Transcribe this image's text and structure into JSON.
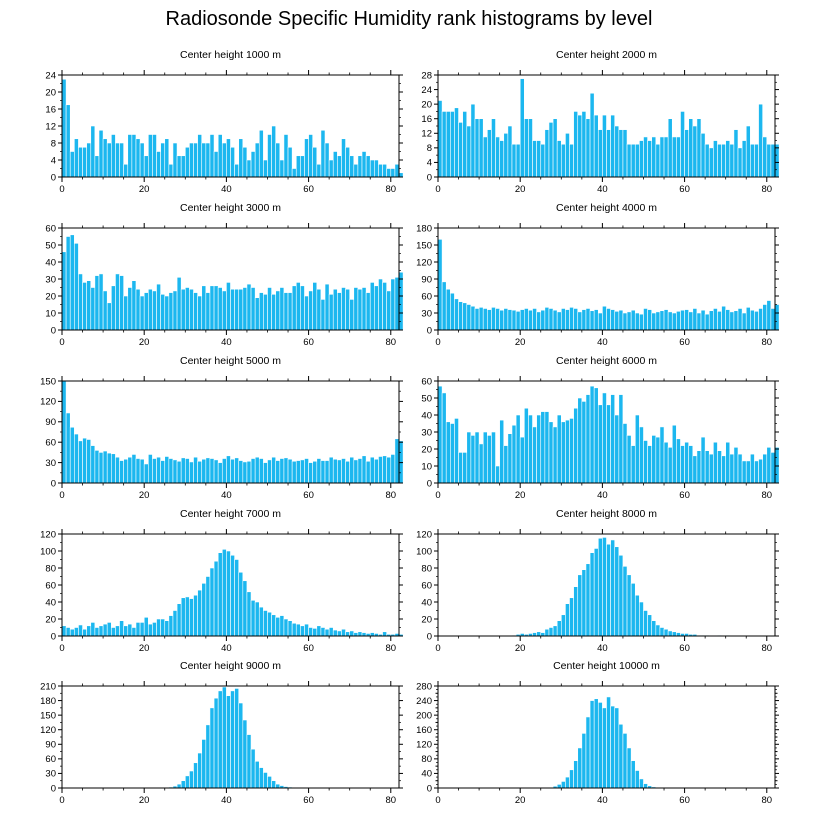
{
  "figure": {
    "title": "Radiosonde Specific Humidity rank histograms by level",
    "bar_color": "#1cb7ef",
    "bar_edge_color": "#ffffff",
    "axis_color": "#000000"
  },
  "chart_data": [
    {
      "type": "bar",
      "title": "Center height 1000 m",
      "xlim": [
        0,
        82
      ],
      "ylim": [
        0,
        24
      ],
      "xticks": [
        0,
        20,
        40,
        60,
        80
      ],
      "yticks": [
        0,
        4,
        8,
        12,
        16,
        20,
        24
      ],
      "values": [
        23,
        17,
        6,
        9,
        7,
        7,
        8,
        12,
        5,
        11,
        9,
        8,
        10,
        8,
        8,
        3,
        10,
        10,
        9,
        8,
        5,
        10,
        10,
        6,
        8,
        9,
        3,
        8,
        5,
        5,
        7,
        8,
        8,
        10,
        8,
        8,
        10,
        6,
        10,
        8,
        9,
        7,
        3,
        9,
        7,
        4,
        6,
        8,
        11,
        4,
        10,
        12,
        8,
        4,
        10,
        7,
        2,
        5,
        5,
        9,
        10,
        7,
        3,
        11,
        8,
        4,
        6,
        5,
        9,
        7,
        5,
        3,
        5,
        6,
        5,
        4,
        4,
        3,
        3,
        2,
        2,
        3,
        1
      ]
    },
    {
      "type": "bar",
      "title": "Center height 2000 m",
      "xlim": [
        0,
        82
      ],
      "ylim": [
        0,
        28
      ],
      "xticks": [
        0,
        20,
        40,
        60,
        80
      ],
      "yticks": [
        0,
        4,
        8,
        12,
        16,
        20,
        24,
        28
      ],
      "values": [
        21,
        18,
        18,
        18,
        19,
        15,
        18,
        14,
        20,
        16,
        16,
        11,
        13,
        16,
        11,
        10,
        12,
        14,
        9,
        9,
        27,
        16,
        16,
        10,
        10,
        9,
        13,
        15,
        16,
        10,
        9,
        12,
        9,
        18,
        17,
        18,
        16,
        23,
        17,
        13,
        17,
        13,
        17,
        14,
        13,
        13,
        9,
        9,
        9,
        10,
        11,
        10,
        11,
        9,
        11,
        11,
        16,
        11,
        11,
        18,
        13,
        16,
        14,
        16,
        12,
        9,
        8,
        10,
        9,
        9,
        10,
        9,
        13,
        8,
        10,
        14,
        9,
        9,
        20,
        11,
        9,
        9,
        9
      ]
    },
    {
      "type": "bar",
      "title": "Center height 3000 m",
      "xlim": [
        0,
        82
      ],
      "ylim": [
        0,
        60
      ],
      "xticks": [
        0,
        20,
        40,
        60,
        80
      ],
      "yticks": [
        0,
        10,
        20,
        30,
        40,
        50,
        60
      ],
      "values": [
        46,
        55,
        56,
        51,
        33,
        28,
        29,
        25,
        32,
        33,
        23,
        16,
        26,
        33,
        32,
        20,
        25,
        29,
        24,
        20,
        22,
        24,
        23,
        27,
        21,
        20,
        22,
        23,
        31,
        24,
        25,
        24,
        22,
        20,
        26,
        22,
        26,
        26,
        25,
        23,
        28,
        24,
        24,
        24,
        25,
        27,
        25,
        19,
        22,
        21,
        25,
        21,
        23,
        25,
        22,
        22,
        26,
        28,
        26,
        20,
        23,
        28,
        24,
        18,
        27,
        21,
        24,
        22,
        25,
        24,
        18,
        25,
        24,
        25,
        22,
        28,
        26,
        30,
        28,
        23,
        30,
        31,
        34
      ]
    },
    {
      "type": "bar",
      "title": "Center height 4000 m",
      "xlim": [
        0,
        82
      ],
      "ylim": [
        0,
        180
      ],
      "xticks": [
        0,
        20,
        40,
        60,
        80
      ],
      "yticks": [
        0,
        30,
        60,
        90,
        120,
        150,
        180
      ],
      "values": [
        160,
        85,
        72,
        65,
        55,
        50,
        48,
        45,
        42,
        38,
        40,
        38,
        36,
        40,
        38,
        35,
        38,
        36,
        35,
        33,
        36,
        38,
        35,
        38,
        32,
        35,
        40,
        38,
        35,
        32,
        38,
        36,
        40,
        38,
        32,
        36,
        38,
        34,
        36,
        30,
        42,
        38,
        36,
        33,
        35,
        30,
        32,
        35,
        30,
        28,
        38,
        36,
        30,
        32,
        34,
        36,
        32,
        30,
        33,
        35,
        36,
        32,
        38,
        30,
        35,
        28,
        34,
        38,
        33,
        42,
        36,
        32,
        34,
        38,
        30,
        40,
        35,
        33,
        38,
        45,
        52,
        38,
        45
      ]
    },
    {
      "type": "bar",
      "title": "Center height 5000 m",
      "xlim": [
        0,
        82
      ],
      "ylim": [
        0,
        150
      ],
      "xticks": [
        0,
        20,
        40,
        60,
        80
      ],
      "yticks": [
        0,
        30,
        60,
        90,
        120,
        150
      ],
      "values": [
        150,
        103,
        82,
        72,
        62,
        66,
        64,
        55,
        48,
        45,
        47,
        44,
        43,
        38,
        33,
        35,
        38,
        42,
        36,
        35,
        28,
        42,
        36,
        38,
        33,
        39,
        36,
        34,
        32,
        37,
        36,
        31,
        38,
        32,
        35,
        37,
        36,
        34,
        30,
        36,
        40,
        35,
        37,
        33,
        31,
        32,
        36,
        38,
        36,
        30,
        34,
        38,
        33,
        36,
        37,
        35,
        32,
        33,
        34,
        36,
        30,
        32,
        36,
        33,
        33,
        38,
        35,
        34,
        36,
        32,
        38,
        34,
        36,
        40,
        32,
        38,
        35,
        39,
        40,
        38,
        42,
        65,
        62
      ]
    },
    {
      "type": "bar",
      "title": "Center height 6000 m",
      "xlim": [
        0,
        82
      ],
      "ylim": [
        0,
        60
      ],
      "xticks": [
        0,
        20,
        40,
        60,
        80
      ],
      "yticks": [
        0,
        10,
        20,
        30,
        40,
        50,
        60
      ],
      "values": [
        57,
        53,
        36,
        35,
        38,
        18,
        18,
        30,
        28,
        30,
        23,
        30,
        28,
        30,
        10,
        37,
        22,
        29,
        34,
        40,
        27,
        44,
        40,
        33,
        40,
        42,
        42,
        36,
        33,
        40,
        36,
        37,
        38,
        44,
        50,
        48,
        52,
        57,
        56,
        46,
        53,
        46,
        52,
        40,
        52,
        35,
        28,
        22,
        40,
        33,
        25,
        22,
        28,
        27,
        33,
        24,
        21,
        34,
        26,
        22,
        24,
        22,
        16,
        19,
        27,
        19,
        17,
        24,
        19,
        16,
        24,
        17,
        21,
        17,
        13,
        13,
        17,
        13,
        14,
        17,
        21,
        18,
        21
      ]
    },
    {
      "type": "bar",
      "title": "Center height 7000 m",
      "xlim": [
        0,
        82
      ],
      "ylim": [
        0,
        120
      ],
      "xticks": [
        0,
        20,
        40,
        60,
        80
      ],
      "yticks": [
        0,
        20,
        40,
        60,
        80,
        100,
        120
      ],
      "values": [
        12,
        10,
        8,
        10,
        13,
        8,
        12,
        16,
        10,
        12,
        14,
        16,
        10,
        12,
        18,
        12,
        14,
        10,
        16,
        16,
        22,
        14,
        16,
        20,
        20,
        18,
        24,
        30,
        38,
        45,
        46,
        44,
        48,
        54,
        62,
        70,
        80,
        88,
        98,
        102,
        100,
        95,
        90,
        75,
        65,
        52,
        42,
        40,
        34,
        30,
        28,
        25,
        22,
        24,
        20,
        18,
        15,
        14,
        12,
        14,
        10,
        9,
        12,
        10,
        8,
        10,
        7,
        6,
        8,
        5,
        6,
        4,
        5,
        4,
        3,
        4,
        3,
        2,
        5,
        2,
        2,
        3,
        2
      ]
    },
    {
      "type": "bar",
      "title": "Center height 8000 m",
      "xlim": [
        0,
        82
      ],
      "ylim": [
        0,
        120
      ],
      "xticks": [
        0,
        20,
        40,
        60,
        80
      ],
      "yticks": [
        0,
        20,
        40,
        60,
        80,
        100,
        120
      ],
      "values": [
        0,
        0,
        0,
        0,
        0,
        0,
        0,
        0,
        0,
        0,
        0,
        0,
        0,
        0,
        0,
        0,
        0,
        0,
        1,
        2,
        3,
        2,
        3,
        4,
        5,
        4,
        8,
        10,
        12,
        18,
        25,
        38,
        45,
        58,
        72,
        78,
        85,
        98,
        103,
        115,
        116,
        108,
        113,
        105,
        95,
        82,
        72,
        62,
        48,
        40,
        30,
        25,
        18,
        13,
        10,
        8,
        6,
        5,
        4,
        3,
        3,
        2,
        2,
        1,
        1,
        1,
        0,
        0,
        1,
        0,
        1,
        0,
        0,
        0,
        0,
        0,
        0,
        0,
        0,
        0,
        0,
        0,
        0
      ]
    },
    {
      "type": "bar",
      "title": "Center height 9000 m",
      "xlim": [
        0,
        82
      ],
      "ylim": [
        0,
        210
      ],
      "xticks": [
        0,
        20,
        40,
        60,
        80
      ],
      "yticks": [
        0,
        30,
        60,
        90,
        120,
        150,
        180,
        210
      ],
      "values": [
        0,
        0,
        0,
        0,
        0,
        0,
        0,
        0,
        0,
        0,
        0,
        0,
        0,
        0,
        0,
        0,
        0,
        0,
        0,
        0,
        0,
        0,
        0,
        0,
        0,
        1,
        2,
        4,
        8,
        15,
        25,
        35,
        52,
        72,
        100,
        130,
        165,
        185,
        200,
        208,
        190,
        200,
        205,
        175,
        140,
        110,
        80,
        55,
        42,
        32,
        24,
        15,
        8,
        5,
        3,
        2,
        1,
        1,
        0,
        0,
        0,
        0,
        0,
        0,
        0,
        0,
        0,
        0,
        0,
        0,
        0,
        0,
        0,
        0,
        0,
        0,
        0,
        0,
        0,
        0,
        0,
        0,
        0
      ]
    },
    {
      "type": "bar",
      "title": "Center height 10000 m",
      "xlim": [
        0,
        82
      ],
      "ylim": [
        0,
        280
      ],
      "xticks": [
        0,
        20,
        40,
        60,
        80
      ],
      "yticks": [
        0,
        20,
        40,
        60,
        80,
        100,
        120,
        140,
        160,
        180,
        200,
        220,
        240,
        260,
        280
      ],
      "ytick_labels": [
        0,
        40,
        80,
        120,
        160,
        200,
        240,
        280
      ],
      "values": [
        0,
        0,
        0,
        0,
        0,
        0,
        0,
        0,
        0,
        0,
        0,
        0,
        0,
        0,
        0,
        0,
        0,
        0,
        0,
        0,
        0,
        0,
        0,
        0,
        0,
        0,
        1,
        2,
        5,
        10,
        18,
        30,
        50,
        75,
        110,
        150,
        195,
        240,
        245,
        235,
        220,
        250,
        225,
        220,
        175,
        150,
        110,
        75,
        48,
        25,
        12,
        6,
        3,
        2,
        1,
        1,
        0,
        0,
        0,
        0,
        0,
        0,
        0,
        0,
        0,
        0,
        0,
        0,
        0,
        0,
        0,
        0,
        0,
        0,
        0,
        0,
        0,
        0,
        0,
        0,
        0,
        0,
        0
      ]
    }
  ]
}
